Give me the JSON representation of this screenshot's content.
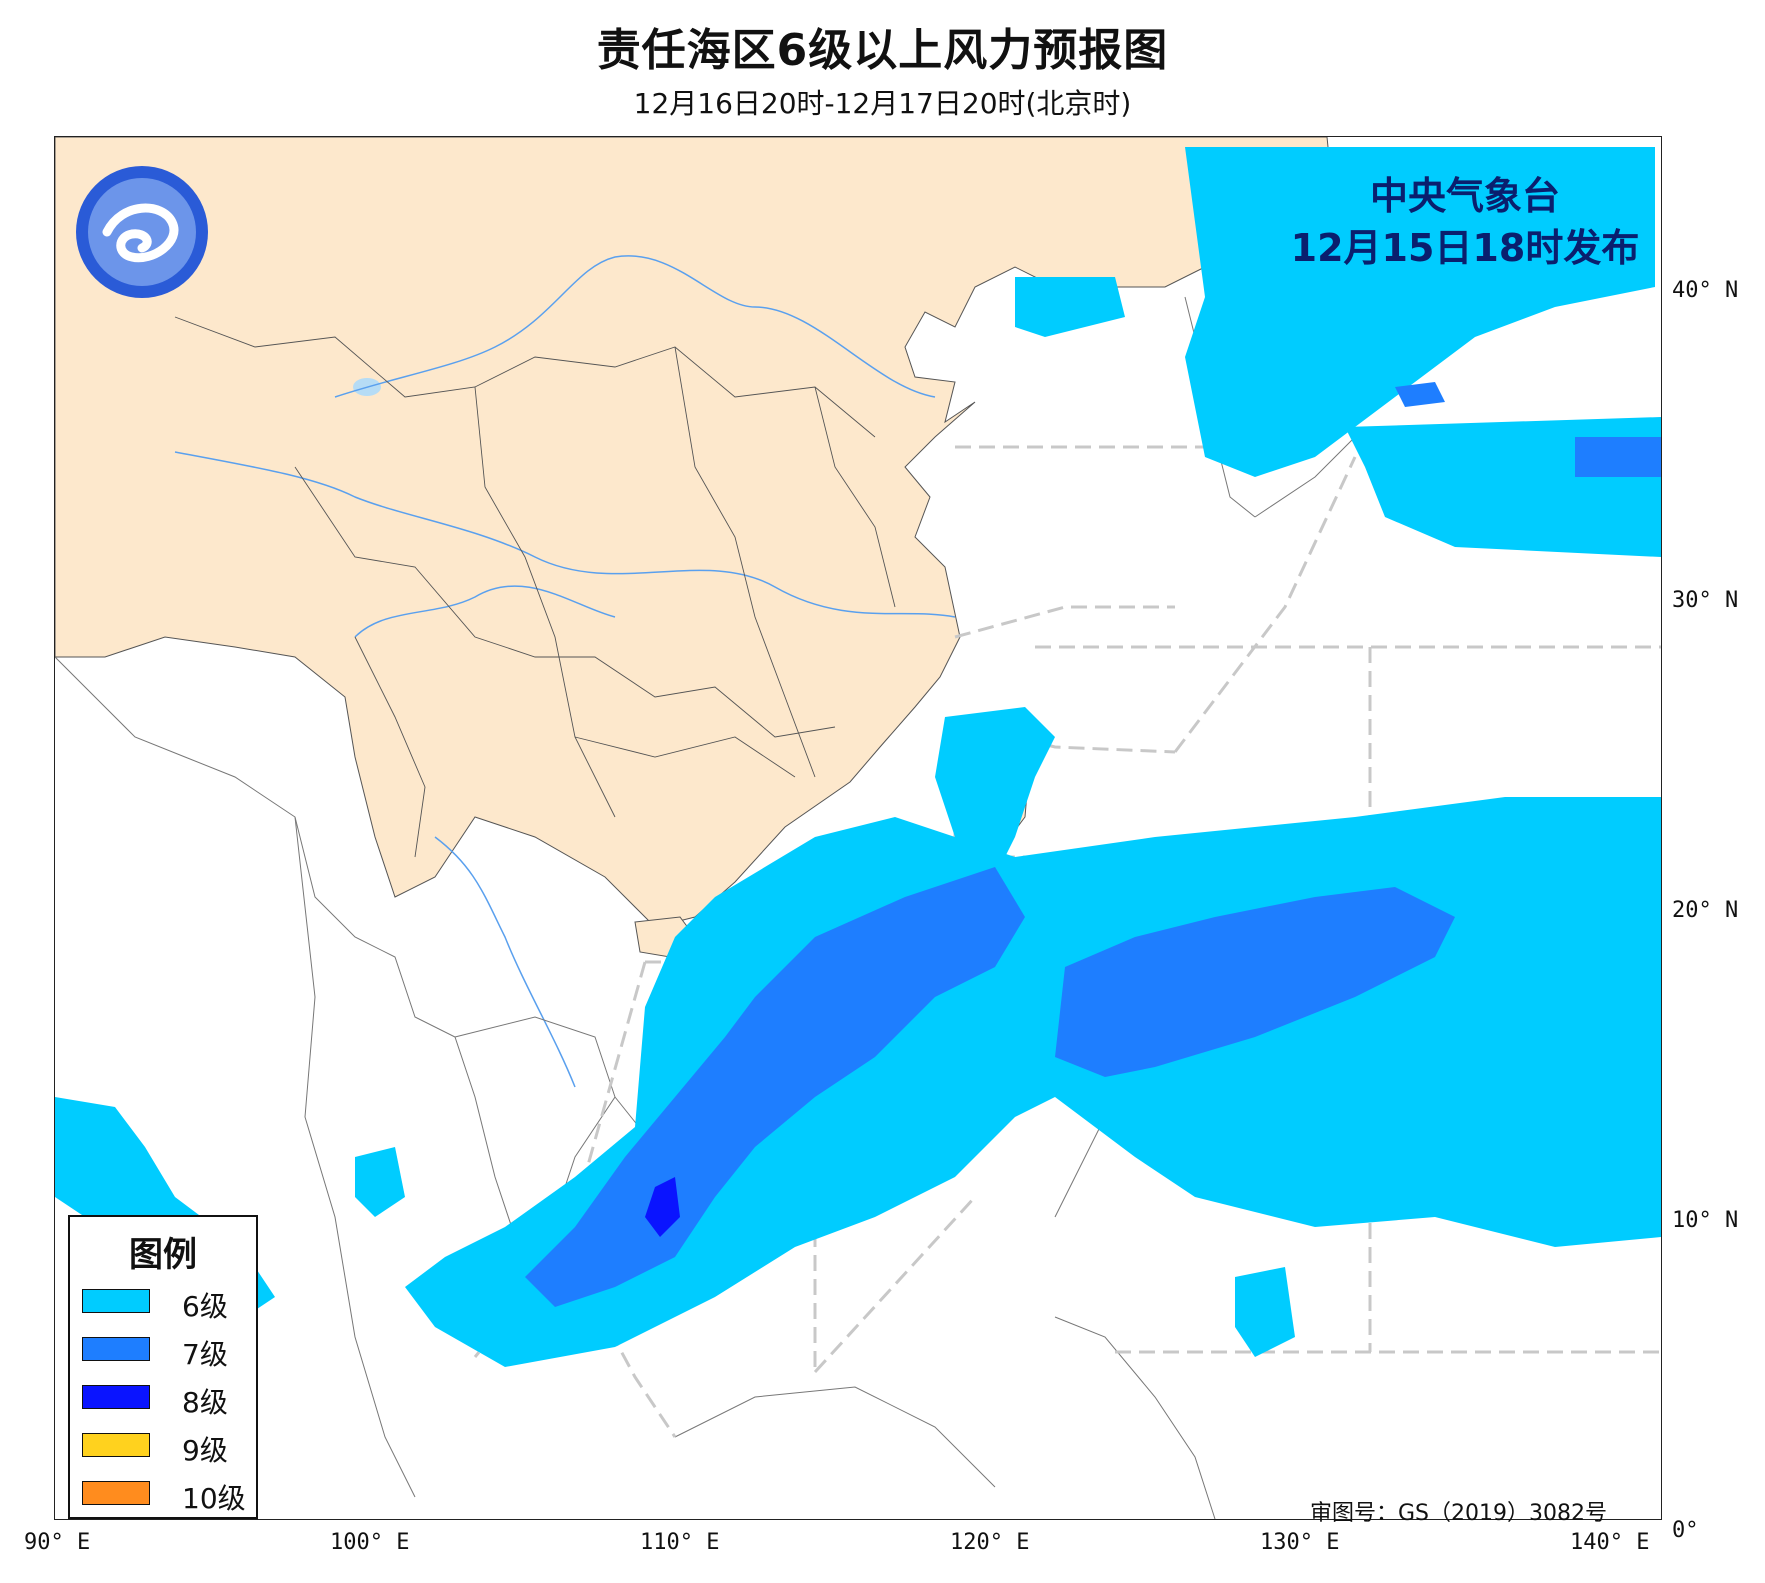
{
  "title": "责任海区6级以上风力预报图",
  "subtitle": "12月16日20时-12月17日20时(北京时)",
  "issuer": {
    "line1": "中央气象台",
    "line2": "12月15日18时发布"
  },
  "approval_number": "审图号：GS（2019）3082号",
  "legend": {
    "title": "图例",
    "items": [
      {
        "label": "6级",
        "color": "#00ccff"
      },
      {
        "label": "7级",
        "color": "#1e7eff"
      },
      {
        "label": "8级",
        "color": "#0a14ff"
      },
      {
        "label": "9级",
        "color": "#ffd21e"
      },
      {
        "label": "10级",
        "color": "#ff8c1e"
      }
    ]
  },
  "axes": {
    "longitude_labels": [
      "90° E",
      "100° E",
      "110° E",
      "120° E",
      "130° E",
      "140° E"
    ],
    "latitude_labels": [
      "40° N",
      "30° N",
      "20° N",
      "10° N",
      "0°"
    ]
  },
  "colors": {
    "land_china": "#fde8cc",
    "land_other": "#ffffff",
    "sea": "#ffffff",
    "river": "#5aa0ee",
    "lake": "#b6dcf5",
    "boundary": "#444444",
    "sea_area_dash": "#c8c8c8",
    "issuer_text": "#0a1f6e",
    "logo_blue": "#2a5bd7"
  },
  "icons": {
    "logo": "cma-logo-icon"
  }
}
